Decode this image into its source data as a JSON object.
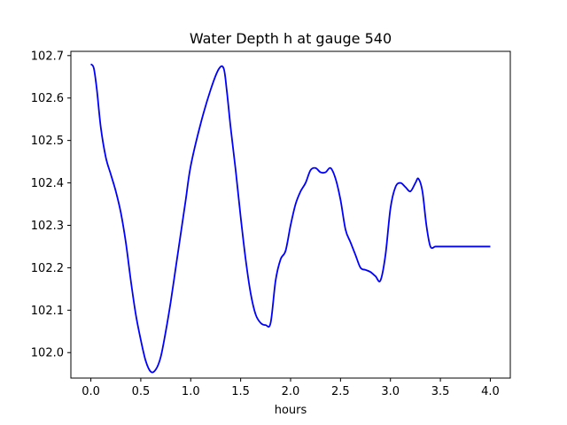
{
  "chart_data": {
    "type": "line",
    "title": "Water Depth h at gauge 540",
    "xlabel": "hours",
    "ylabel": "",
    "xlim": [
      -0.2,
      4.2
    ],
    "ylim": [
      101.94,
      102.71
    ],
    "xticks": [
      0.0,
      0.5,
      1.0,
      1.5,
      2.0,
      2.5,
      3.0,
      3.5,
      4.0
    ],
    "xtick_labels": [
      "0.0",
      "0.5",
      "1.0",
      "1.5",
      "2.0",
      "2.5",
      "3.0",
      "3.5",
      "4.0"
    ],
    "yticks": [
      102.0,
      102.1,
      102.2,
      102.3,
      102.4,
      102.5,
      102.6,
      102.7
    ],
    "ytick_labels": [
      "102.0",
      "102.1",
      "102.2",
      "102.3",
      "102.4",
      "102.5",
      "102.6",
      "102.7"
    ],
    "grid": false,
    "series": [
      {
        "color": "#0000ff",
        "x": [
          0.0,
          0.03,
          0.06,
          0.1,
          0.15,
          0.2,
          0.25,
          0.3,
          0.35,
          0.4,
          0.45,
          0.5,
          0.55,
          0.6,
          0.65,
          0.7,
          0.75,
          0.8,
          0.85,
          0.9,
          0.95,
          1.0,
          1.1,
          1.2,
          1.28,
          1.33,
          1.36,
          1.4,
          1.45,
          1.5,
          1.55,
          1.6,
          1.65,
          1.7,
          1.75,
          1.8,
          1.85,
          1.9,
          1.95,
          2.0,
          2.05,
          2.1,
          2.15,
          2.2,
          2.25,
          2.3,
          2.35,
          2.4,
          2.45,
          2.5,
          2.55,
          2.6,
          2.65,
          2.7,
          2.75,
          2.8,
          2.85,
          2.9,
          2.95,
          3.0,
          3.05,
          3.1,
          3.15,
          3.2,
          3.25,
          3.28,
          3.32,
          3.36,
          3.4,
          3.45,
          3.5,
          3.55,
          3.6,
          3.65,
          3.7,
          3.75,
          3.8,
          3.85,
          3.9,
          3.95,
          4.0
        ],
        "y": [
          102.68,
          102.67,
          102.62,
          102.53,
          102.46,
          102.42,
          102.38,
          102.33,
          102.26,
          102.17,
          102.09,
          102.03,
          101.98,
          101.955,
          101.96,
          101.99,
          102.05,
          102.12,
          102.2,
          102.28,
          102.36,
          102.44,
          102.54,
          102.62,
          102.668,
          102.67,
          102.62,
          102.53,
          102.43,
          102.32,
          102.22,
          102.14,
          102.09,
          102.07,
          102.065,
          102.07,
          102.17,
          102.22,
          102.24,
          102.3,
          102.35,
          102.38,
          102.4,
          102.43,
          102.435,
          102.425,
          102.425,
          102.435,
          102.41,
          102.36,
          102.29,
          102.26,
          102.23,
          102.2,
          102.195,
          102.19,
          102.18,
          102.17,
          102.23,
          102.34,
          102.39,
          102.4,
          102.39,
          102.38,
          102.4,
          102.41,
          102.38,
          102.3,
          102.25,
          102.25,
          102.25,
          102.25,
          102.25,
          102.25,
          102.25,
          102.25,
          102.25,
          102.25,
          102.25,
          102.25,
          102.25
        ]
      }
    ]
  }
}
